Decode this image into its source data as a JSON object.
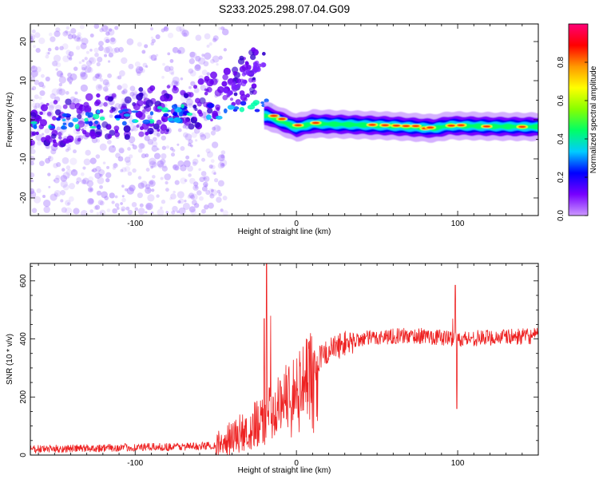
{
  "title": "S233.2025.298.07.04.G09",
  "chart_data": [
    {
      "type": "heatmap",
      "xlabel": "Height of straight line (km)",
      "ylabel": "Frequency (Hz)",
      "xlim": [
        -165,
        150
      ],
      "ylim": [
        -24.5,
        24.5
      ],
      "xticks": [
        -100,
        0,
        100
      ],
      "yticks": [
        -20,
        -10,
        0,
        10,
        20
      ],
      "colorbar": {
        "label": "Normalized spectral amplitude",
        "range": [
          0,
          1
        ],
        "ticks": [
          "0.0",
          "0.2",
          "0.4",
          "0.6",
          "0.8"
        ],
        "stops": [
          "#cc99ff",
          "#7700ff",
          "#0000ff",
          "#00ccff",
          "#00ff66",
          "#88ff00",
          "#ffff00",
          "#ff9900",
          "#ff0000",
          "#ff0077"
        ]
      },
      "ridge": {
        "x": [
          -18,
          -12,
          -6,
          0,
          10,
          30,
          60,
          85,
          95,
          120,
          150
        ],
        "frequency": [
          1,
          0,
          -1,
          -2,
          -1,
          -1.2,
          -1.6,
          -2.2,
          -1.5,
          -1.7,
          -1.8
        ],
        "peak_x": [
          -14,
          -9,
          1,
          12,
          47,
          55,
          62,
          68,
          74,
          80,
          83,
          96,
          102,
          118,
          140
        ],
        "peak_freq": [
          1,
          0.2,
          -1.4,
          -0.8,
          -1.3,
          -1.4,
          -1.5,
          -1.6,
          -1.6,
          -2.2,
          -2.0,
          -1.5,
          -1.4,
          -1.7,
          -1.8
        ]
      },
      "scatter_bands": [
        {
          "x": [
            -130,
            -50
          ],
          "freq_center": [
            -2,
            8
          ],
          "spread": 22
        }
      ]
    },
    {
      "type": "line",
      "xlabel": "Height of straight line (km)",
      "ylabel": "SNR (10 * v/v)",
      "xlim": [
        -165,
        150
      ],
      "ylim": [
        0,
        660
      ],
      "xticks": [
        -100,
        0,
        100
      ],
      "yticks": [
        0,
        200,
        400,
        600
      ],
      "series": [
        {
          "name": "SNR",
          "color": "#ee2222",
          "baseline_x": [
            -165,
            -60,
            -50,
            -45,
            -40,
            -30,
            -20,
            -15,
            -10,
            -5,
            0,
            10,
            20,
            30,
            40,
            60,
            80,
            100,
            120,
            150
          ],
          "baseline_y": [
            20,
            30,
            35,
            45,
            60,
            90,
            120,
            150,
            180,
            220,
            250,
            310,
            360,
            385,
            400,
            410,
            410,
            400,
            405,
            410
          ],
          "spikes_x": [
            -18.5,
            -20,
            -16,
            98.5,
            99.5,
            97
          ],
          "spikes_y": [
            660,
            470,
            480,
            585,
            160,
            470
          ]
        }
      ]
    }
  ]
}
